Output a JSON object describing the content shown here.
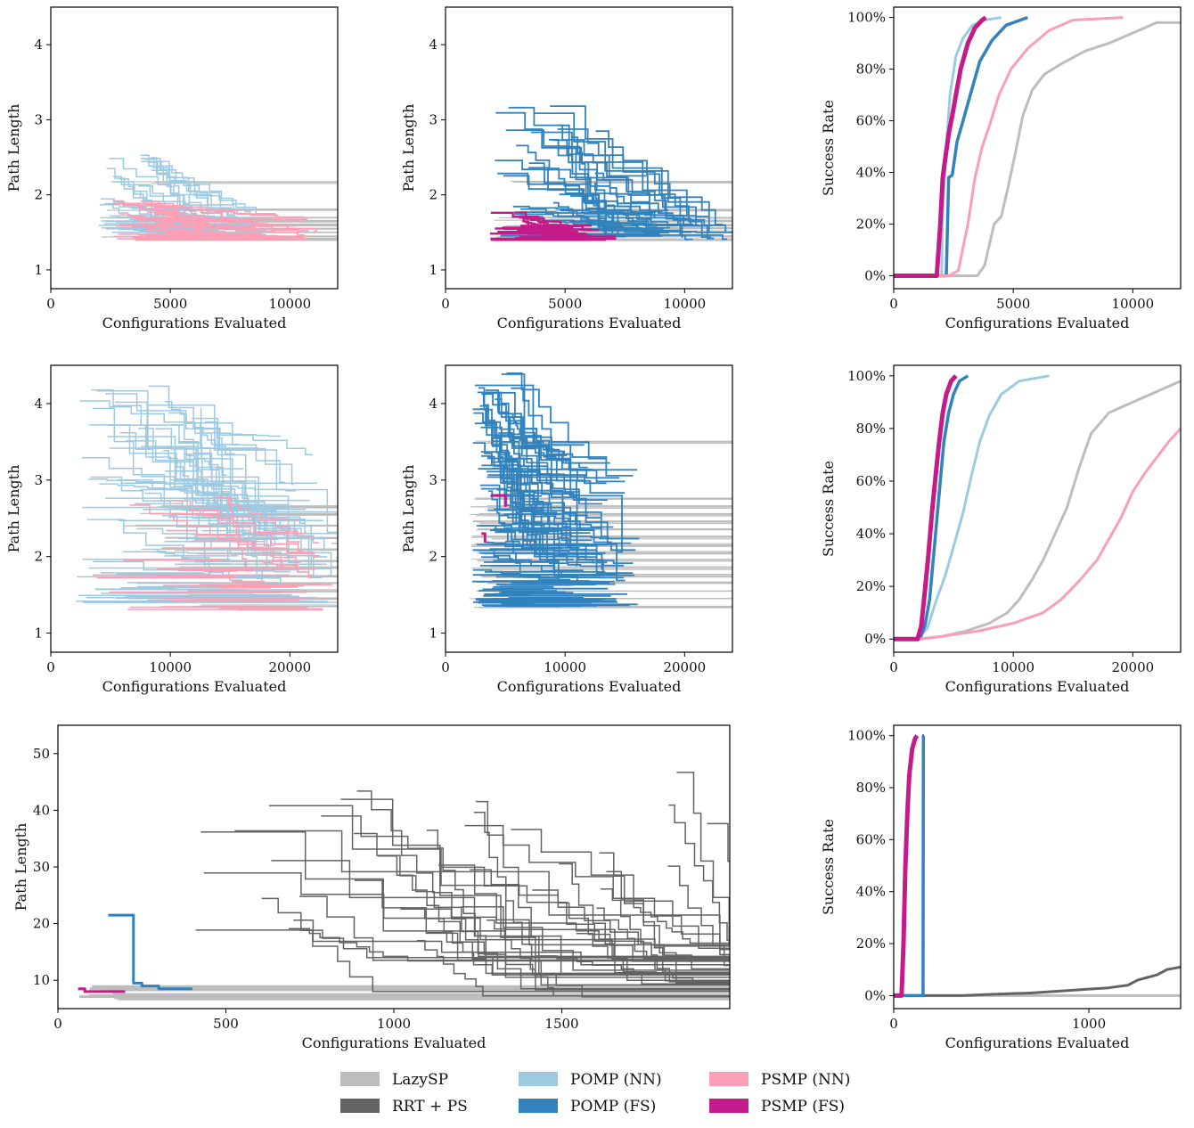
{
  "colors": {
    "LazySP": "#bdbdbd",
    "RRT + PS": "#636363",
    "POMP (NN)": "#9ecae1",
    "POMP (FS)": "#3182bd",
    "PSMP (NN)": "#fa9fb5",
    "PSMP (FS)": "#c51b8a"
  },
  "legend": {
    "placement": "bottom-center",
    "entries": [
      "LazySP",
      "RRT + PS",
      "POMP (NN)",
      "POMP (FS)",
      "PSMP (NN)",
      "PSMP (FS)"
    ]
  },
  "chart_data": [
    {
      "id": "r1c1",
      "type": "line",
      "xlabel": "Configurations Evaluated",
      "ylabel": "Path Length",
      "xlim": [
        0,
        12000
      ],
      "ylim": [
        0.75,
        4.5
      ],
      "xticks": [
        "0",
        "5000",
        "10000"
      ],
      "xtick_values": [
        0,
        5000,
        10000
      ],
      "yticks": [
        "1",
        "2",
        "3",
        "4"
      ],
      "ytick_values": [
        1,
        2,
        3,
        4
      ],
      "series": [
        {
          "name": "LazySP",
          "style": "flat",
          "x_start_range": [
            2000,
            6000
          ],
          "y_levels": [
            1.4,
            1.45,
            1.5,
            1.55,
            1.6,
            1.65,
            1.7,
            1.8,
            2.17
          ]
        },
        {
          "name": "POMP (NN)",
          "style": "step",
          "x_start_range": [
            2000,
            4500
          ],
          "x_end_range": [
            4500,
            8500
          ],
          "y_start_range": [
            1.5,
            2.55
          ],
          "y_end_range": [
            1.4,
            1.8
          ],
          "count": 45
        },
        {
          "name": "PSMP (NN)",
          "style": "step",
          "x_start_range": [
            2500,
            4500
          ],
          "x_end_range": [
            5000,
            10800
          ],
          "y_start_range": [
            1.4,
            1.95
          ],
          "y_end_range": [
            1.4,
            1.7
          ],
          "count": 45
        }
      ]
    },
    {
      "id": "r1c2",
      "type": "line",
      "xlabel": "Configurations Evaluated",
      "ylabel": "Path Length",
      "xlim": [
        0,
        12000
      ],
      "ylim": [
        0.75,
        4.5
      ],
      "xticks": [
        "0",
        "5000",
        "10000"
      ],
      "xtick_values": [
        0,
        5000,
        10000
      ],
      "yticks": [
        "1",
        "2",
        "3",
        "4"
      ],
      "ytick_values": [
        1,
        2,
        3,
        4
      ],
      "series": [
        {
          "name": "LazySP",
          "style": "flat",
          "x_start_range": [
            2000,
            6000
          ],
          "y_levels": [
            1.4,
            1.45,
            1.5,
            1.55,
            1.6,
            1.65,
            1.7,
            1.8,
            2.17
          ]
        },
        {
          "name": "POMP (FS)",
          "style": "step",
          "x_start_range": [
            2000,
            6500
          ],
          "x_end_range": [
            6000,
            12000
          ],
          "y_start_range": [
            1.45,
            3.25
          ],
          "y_end_range": [
            1.4,
            1.8
          ],
          "count": 45
        },
        {
          "name": "PSMP (FS)",
          "style": "step",
          "x_start_range": [
            1800,
            3500
          ],
          "x_end_range": [
            3500,
            6000
          ],
          "y_start_range": [
            1.4,
            1.8
          ],
          "y_end_range": [
            1.4,
            1.6
          ],
          "count": 25
        }
      ]
    },
    {
      "id": "r1c3",
      "type": "line",
      "xlabel": "Configurations Evaluated",
      "ylabel": "Success Rate",
      "xlim": [
        0,
        12000
      ],
      "ylim": [
        -0.05,
        1.04
      ],
      "xticks": [
        "0",
        "5000",
        "10000"
      ],
      "xtick_values": [
        0,
        5000,
        10000
      ],
      "yticks": [
        "0%",
        "20%",
        "40%",
        "60%",
        "80%",
        "100%"
      ],
      "ytick_values": [
        0,
        0.2,
        0.4,
        0.6,
        0.8,
        1.0
      ],
      "series": [
        {
          "name": "LazySP",
          "x": [
            0,
            3500,
            3800,
            4200,
            4500,
            4800,
            5100,
            5400,
            5800,
            6300,
            7000,
            8000,
            9000,
            10000,
            11000,
            12000
          ],
          "y": [
            0,
            0,
            0.04,
            0.2,
            0.23,
            0.35,
            0.48,
            0.62,
            0.72,
            0.78,
            0.82,
            0.87,
            0.9,
            0.94,
            0.98,
            0.98
          ]
        },
        {
          "name": "RRT + PS",
          "x": [],
          "y": []
        },
        {
          "name": "POMP (NN)",
          "x": [
            0,
            2000,
            2050,
            2200,
            2350,
            2600,
            2900,
            3300,
            3800,
            4500
          ],
          "y": [
            0,
            0,
            0.25,
            0.5,
            0.7,
            0.85,
            0.92,
            0.97,
            0.99,
            1.0
          ]
        },
        {
          "name": "POMP (FS)",
          "x": [
            0,
            2200,
            2300,
            2450,
            2650,
            2900,
            3200,
            3600,
            4100,
            4700,
            5600
          ],
          "y": [
            0,
            0,
            0.38,
            0.39,
            0.52,
            0.6,
            0.7,
            0.83,
            0.91,
            0.97,
            1.0
          ]
        },
        {
          "name": "PSMP (NN)",
          "x": [
            0,
            2300,
            2700,
            3100,
            3400,
            3700,
            4000,
            4400,
            4900,
            5600,
            6500,
            7500,
            9600
          ],
          "y": [
            0,
            0,
            0.02,
            0.2,
            0.38,
            0.5,
            0.58,
            0.7,
            0.8,
            0.88,
            0.95,
            0.99,
            1.0
          ]
        },
        {
          "name": "PSMP (FS)",
          "x": [
            0,
            1800,
            1950,
            2050,
            2150,
            2300,
            2450,
            2600,
            2800,
            3100,
            3400,
            3700,
            3850
          ],
          "y": [
            0,
            0,
            0.2,
            0.38,
            0.45,
            0.55,
            0.62,
            0.7,
            0.8,
            0.9,
            0.96,
            0.99,
            1.0
          ]
        }
      ]
    },
    {
      "id": "r2c1",
      "type": "line",
      "xlabel": "Configurations Evaluated",
      "ylabel": "Path Length",
      "xlim": [
        0,
        24000
      ],
      "ylim": [
        0.75,
        4.5
      ],
      "xticks": [
        "0",
        "10000",
        "20000"
      ],
      "xtick_values": [
        0,
        10000,
        20000
      ],
      "yticks": [
        "1",
        "2",
        "3",
        "4"
      ],
      "ytick_values": [
        1,
        2,
        3,
        4
      ],
      "series": [
        {
          "name": "LazySP",
          "style": "flat",
          "x_start_range": [
            6000,
            14000
          ],
          "y_levels": [
            1.35,
            1.45,
            1.55,
            1.65,
            1.75,
            1.85,
            1.95,
            2.1,
            2.25,
            2.4,
            2.55,
            2.65
          ]
        },
        {
          "name": "POMP (NN)",
          "style": "step",
          "x_start_range": [
            2000,
            14000
          ],
          "x_end_range": [
            10000,
            24000
          ],
          "y_start_range": [
            1.4,
            4.25
          ],
          "y_end_range": [
            1.6,
            3.7
          ],
          "count": 110
        },
        {
          "name": "PSMP (NN)",
          "style": "step",
          "x_start_range": [
            3000,
            18000
          ],
          "x_end_range": [
            14000,
            24000
          ],
          "y_start_range": [
            1.3,
            2.8
          ],
          "y_end_range": [
            1.6,
            2.7
          ],
          "count": 40
        }
      ]
    },
    {
      "id": "r2c2",
      "type": "line",
      "xlabel": "Configurations Evaluated",
      "ylabel": "Path Length",
      "xlim": [
        0,
        24000
      ],
      "ylim": [
        0.75,
        4.5
      ],
      "xticks": [
        "0",
        "10000",
        "20000"
      ],
      "xtick_values": [
        0,
        10000,
        20000
      ],
      "yticks": [
        "1",
        "2",
        "3",
        "4"
      ],
      "ytick_values": [
        1,
        2,
        3,
        4
      ],
      "series": [
        {
          "name": "LazySP",
          "style": "flat",
          "x_start_range": [
            2000,
            4000
          ],
          "y_levels": [
            1.35,
            1.45,
            1.55,
            1.65,
            1.75,
            1.85,
            1.95,
            2.05,
            2.15,
            2.25,
            2.35,
            2.45,
            2.55,
            2.65,
            2.75,
            3.5
          ]
        },
        {
          "name": "POMP (FS)",
          "style": "step",
          "x_start_range": [
            2200,
            5500
          ],
          "x_end_range": [
            5000,
            14000
          ],
          "y_start_range": [
            1.35,
            4.4
          ],
          "y_end_range": [
            1.6,
            3.5
          ],
          "count": 120
        },
        {
          "name": "PSMP (FS)",
          "x": [
            3000,
            3300,
            3300,
            3400
          ],
          "y": [
            2.3,
            2.3,
            2.2,
            2.2
          ],
          "x2": [
            3800,
            5000,
            5000
          ],
          "y2": [
            2.8,
            2.8,
            2.65
          ]
        }
      ]
    },
    {
      "id": "r2c3",
      "type": "line",
      "xlabel": "Configurations Evaluated",
      "ylabel": "Success Rate",
      "xlim": [
        0,
        24000
      ],
      "ylim": [
        -0.05,
        1.04
      ],
      "xticks": [
        "0",
        "10000",
        "20000"
      ],
      "xtick_values": [
        0,
        10000,
        20000
      ],
      "yticks": [
        "0%",
        "20%",
        "40%",
        "60%",
        "80%",
        "100%"
      ],
      "ytick_values": [
        0,
        0.2,
        0.4,
        0.6,
        0.8,
        1.0
      ],
      "series": [
        {
          "name": "LazySP",
          "x": [
            0,
            2000,
            4000,
            6000,
            8000,
            9500,
            10500,
            11500,
            12500,
            13500,
            14500,
            15500,
            16500,
            18000,
            20000,
            22000,
            24000
          ],
          "y": [
            0,
            0,
            0.01,
            0.03,
            0.06,
            0.1,
            0.15,
            0.22,
            0.3,
            0.4,
            0.5,
            0.65,
            0.78,
            0.86,
            0.9,
            0.94,
            0.98
          ]
        },
        {
          "name": "POMP (NN)",
          "x": [
            0,
            2000,
            2800,
            3500,
            4300,
            5000,
            5800,
            6500,
            7200,
            8000,
            9000,
            10500,
            13000
          ],
          "y": [
            0,
            0,
            0.04,
            0.14,
            0.24,
            0.35,
            0.48,
            0.62,
            0.75,
            0.85,
            0.93,
            0.98,
            1.0
          ]
        },
        {
          "name": "POMP (FS)",
          "x": [
            0,
            2200,
            2600,
            3000,
            3300,
            3600,
            3900,
            4200,
            4600,
            5000,
            5500,
            6200
          ],
          "y": [
            0,
            0,
            0.05,
            0.15,
            0.3,
            0.45,
            0.6,
            0.75,
            0.86,
            0.93,
            0.98,
            1.0
          ]
        },
        {
          "name": "PSMP (NN)",
          "x": [
            0,
            2200,
            4000,
            7000,
            10000,
            12500,
            14000,
            15500,
            17000,
            18000,
            19000,
            20000,
            21000,
            22000,
            23000,
            24000
          ],
          "y": [
            0,
            0,
            0.01,
            0.03,
            0.06,
            0.1,
            0.15,
            0.22,
            0.3,
            0.38,
            0.46,
            0.56,
            0.63,
            0.69,
            0.75,
            0.8
          ]
        },
        {
          "name": "PSMP (FS)",
          "x": [
            0,
            2000,
            2300,
            2600,
            2900,
            3200,
            3500,
            3800,
            4100,
            4400,
            4800,
            5200
          ],
          "y": [
            0,
            0,
            0.05,
            0.18,
            0.32,
            0.48,
            0.62,
            0.75,
            0.86,
            0.93,
            0.98,
            1.0
          ]
        }
      ]
    },
    {
      "id": "r3c1",
      "type": "line",
      "xlabel": "Configurations Evaluated",
      "ylabel": "Path Length",
      "xlim": [
        0,
        2000
      ],
      "ylim": [
        5,
        55
      ],
      "xticks": [
        "0",
        "500",
        "1000",
        "1500"
      ],
      "xtick_values": [
        0,
        500,
        1000,
        1500
      ],
      "yticks": [
        "10",
        "20",
        "30",
        "40",
        "50"
      ],
      "ytick_values": [
        10,
        20,
        30,
        40,
        50
      ],
      "series": [
        {
          "name": "LazySP",
          "style": "flat",
          "x_start_range": [
            60,
            200
          ],
          "y_levels": [
            6.7,
            6.9,
            7.1,
            7.3,
            7.5,
            8.3,
            8.5,
            8.7,
            8.9
          ]
        },
        {
          "name": "RRT + PS",
          "style": "descending-step",
          "x_start_range": [
            350,
            1950
          ],
          "x_end_range": [
            900,
            2000
          ],
          "y_start_range": [
            12,
            49.5
          ],
          "y_end_range": [
            7,
            17
          ],
          "count": 42
        },
        {
          "name": "POMP (FS)",
          "x": [
            150,
            225,
            225,
            250,
            250,
            300,
            300,
            400
          ],
          "y": [
            21.5,
            21.5,
            9.5,
            9.5,
            9,
            9,
            8.5,
            8.5
          ]
        },
        {
          "name": "PSMP (FS)",
          "x": [
            60,
            80,
            80,
            200
          ],
          "y": [
            8.5,
            8.5,
            8.0,
            8.0
          ]
        }
      ]
    },
    {
      "id": "r3c3",
      "type": "line",
      "xlabel": "Configurations Evaluated",
      "ylabel": "Success Rate",
      "xlim": [
        0,
        1470
      ],
      "ylim": [
        -0.05,
        1.04
      ],
      "xticks": [
        "0",
        "1000"
      ],
      "xtick_values": [
        0,
        1000
      ],
      "yticks": [
        "0%",
        "20%",
        "40%",
        "60%",
        "80%",
        "100%"
      ],
      "ytick_values": [
        0,
        0.2,
        0.4,
        0.6,
        0.8,
        1.0
      ],
      "series": [
        {
          "name": "LazySP",
          "x": [
            0,
            1470
          ],
          "y": [
            0.0,
            0.0
          ]
        },
        {
          "name": "RRT + PS",
          "x": [
            0,
            350,
            500,
            700,
            900,
            1000,
            1100,
            1150,
            1200,
            1250,
            1300,
            1350,
            1400,
            1470
          ],
          "y": [
            0,
            0,
            0.005,
            0.01,
            0.02,
            0.025,
            0.03,
            0.035,
            0.04,
            0.06,
            0.07,
            0.08,
            0.1,
            0.11
          ]
        },
        {
          "name": "POMP (FS)",
          "x": [
            0,
            150,
            152,
            155
          ],
          "y": [
            0,
            0,
            1.0,
            1.0
          ]
        },
        {
          "name": "PSMP (FS)",
          "x": [
            0,
            40,
            50,
            60,
            70,
            80,
            95,
            110,
            120
          ],
          "y": [
            0,
            0,
            0.2,
            0.5,
            0.7,
            0.85,
            0.95,
            0.99,
            1.0
          ]
        }
      ]
    }
  ]
}
